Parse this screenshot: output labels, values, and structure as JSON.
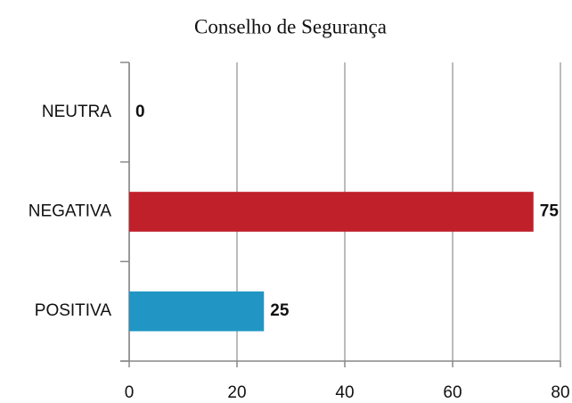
{
  "chart_data": {
    "type": "barh",
    "title": "Conselho de Segurança",
    "categories": [
      "NEUTRA",
      "NEGATIVA",
      "POSITIVA"
    ],
    "values": [
      0,
      75,
      25
    ],
    "colors": [
      "#2196c4",
      "#c0202a",
      "#2196c4"
    ],
    "xlim": [
      0,
      80
    ],
    "xticks": [
      0,
      20,
      40,
      60,
      80
    ],
    "grid": true
  }
}
